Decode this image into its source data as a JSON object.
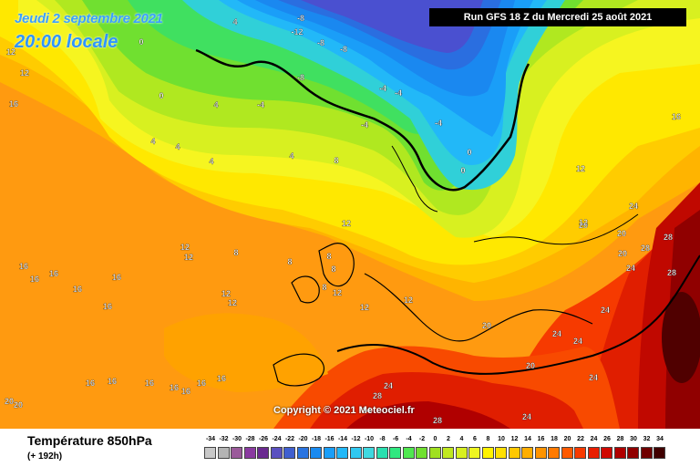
{
  "header": {
    "date": "Jeudi 2 septembre 2021",
    "time": "20:00 locale",
    "run": "Run GFS 18 Z du Mercredi 25 août 2021"
  },
  "copyright": "Copyright © 2021 Meteociel.fr",
  "footer": {
    "title": "Température 850hPa",
    "subtitle": "(+ 192h)"
  },
  "legend": {
    "ticks": [
      "-34",
      "-32",
      "-30",
      "-28",
      "-26",
      "-24",
      "-22",
      "-20",
      "-18",
      "-16",
      "-14",
      "-12",
      "-10",
      "-8",
      "-6",
      "-4",
      "-2",
      "0",
      "2",
      "4",
      "6",
      "8",
      "10",
      "12",
      "14",
      "16",
      "18",
      "20",
      "22",
      "24",
      "26",
      "28",
      "30",
      "32",
      "34"
    ],
    "colors": [
      "#c8c8c8",
      "#b4b4b4",
      "#9a5a9a",
      "#8a3aa0",
      "#6a2a90",
      "#5a50c0",
      "#4060d0",
      "#2a74e0",
      "#1a8af0",
      "#1a9ef8",
      "#22b8f8",
      "#30c8f0",
      "#40d8e0",
      "#2ae0b0",
      "#30e880",
      "#50e850",
      "#70e030",
      "#a0e020",
      "#c0e820",
      "#d8f020",
      "#eef520",
      "#fff200",
      "#ffe000",
      "#ffc800",
      "#ffae00",
      "#ff9400",
      "#ff7a00",
      "#ff5a00",
      "#f83a00",
      "#e81e00",
      "#d00800",
      "#b00000",
      "#900000",
      "#700000",
      "#400000"
    ]
  },
  "isotherm_labels": [
    {
      "text": "-8"
    },
    {
      "text": "-12"
    },
    {
      "text": "-8"
    },
    {
      "text": "-8"
    },
    {
      "text": "-8"
    },
    {
      "text": "-4"
    },
    {
      "text": "-4"
    },
    {
      "text": "-4"
    },
    {
      "text": "-4"
    },
    {
      "text": "0"
    },
    {
      "text": "0"
    },
    {
      "text": "4"
    },
    {
      "text": "4"
    },
    {
      "text": "4"
    },
    {
      "text": "4"
    },
    {
      "text": "4"
    },
    {
      "text": "-4"
    },
    {
      "text": "0"
    },
    {
      "text": "0"
    },
    {
      "text": "4"
    },
    {
      "text": "8"
    },
    {
      "text": "8"
    },
    {
      "text": "8"
    },
    {
      "text": "8"
    },
    {
      "text": "8"
    },
    {
      "text": "8"
    },
    {
      "text": "12"
    },
    {
      "text": "12"
    },
    {
      "text": "12"
    },
    {
      "text": "12"
    },
    {
      "text": "12"
    },
    {
      "text": "12"
    },
    {
      "text": "12"
    },
    {
      "text": "12"
    },
    {
      "text": "12"
    },
    {
      "text": "16"
    },
    {
      "text": "16"
    },
    {
      "text": "16"
    },
    {
      "text": "16"
    },
    {
      "text": "16"
    },
    {
      "text": "16"
    },
    {
      "text": "16"
    },
    {
      "text": "16"
    },
    {
      "text": "16"
    },
    {
      "text": "16"
    },
    {
      "text": "16"
    },
    {
      "text": "16"
    },
    {
      "text": "16"
    },
    {
      "text": "20"
    },
    {
      "text": "20"
    },
    {
      "text": "20"
    },
    {
      "text": "20"
    },
    {
      "text": "20"
    },
    {
      "text": "20"
    },
    {
      "text": "20"
    },
    {
      "text": "24"
    },
    {
      "text": "24"
    },
    {
      "text": "24"
    },
    {
      "text": "24"
    },
    {
      "text": "24"
    },
    {
      "text": "24"
    },
    {
      "text": "24"
    },
    {
      "text": "24"
    },
    {
      "text": "24"
    },
    {
      "text": "28"
    },
    {
      "text": "28"
    },
    {
      "text": "28"
    },
    {
      "text": "28"
    },
    {
      "text": "28"
    },
    {
      "text": "12"
    },
    {
      "text": "12"
    },
    {
      "text": "12"
    },
    {
      "text": "16"
    },
    {
      "text": "16"
    }
  ]
}
